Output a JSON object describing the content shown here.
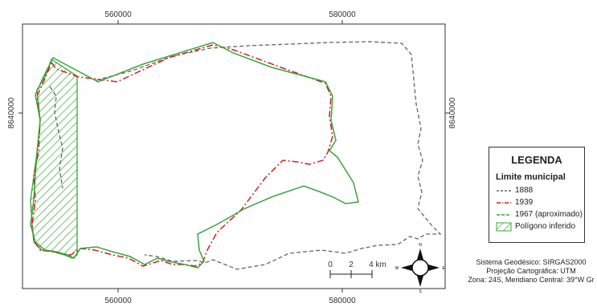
{
  "map": {
    "top_ticks": [
      "560000",
      "580000"
    ],
    "bottom_ticks": [
      "560000",
      "580000"
    ],
    "left_tick": "8640000",
    "right_tick": "8640000"
  },
  "scale_bar": {
    "labels": [
      "0",
      "2",
      "4 km"
    ]
  },
  "north_arrow": {
    "directions": [
      "N",
      "E",
      "S",
      "W"
    ]
  },
  "legend": {
    "title": "LEGENDA",
    "subtitle": "Limite municipal",
    "items": [
      {
        "label": "1888",
        "color": "#666666",
        "style": "dashed"
      },
      {
        "label": "1939",
        "color": "#cc2222",
        "style": "dash-dot"
      },
      {
        "label": "1967 (aproximado)",
        "color": "#3aa63a",
        "style": "solid"
      },
      {
        "label": "Polígono inferido",
        "color": "#3aa63a",
        "style": "hatched"
      }
    ]
  },
  "credits": [
    "Sistema Geodésico: SIRGAS2000",
    "Projeção Cartográfica: UTM",
    "Zona: 24S, Meridiano Central: 39°W Gr"
  ],
  "colors": {
    "line_1888": "#666666",
    "line_1939": "#cc2222",
    "line_1967": "#3aa63a",
    "frame": "#333333"
  }
}
